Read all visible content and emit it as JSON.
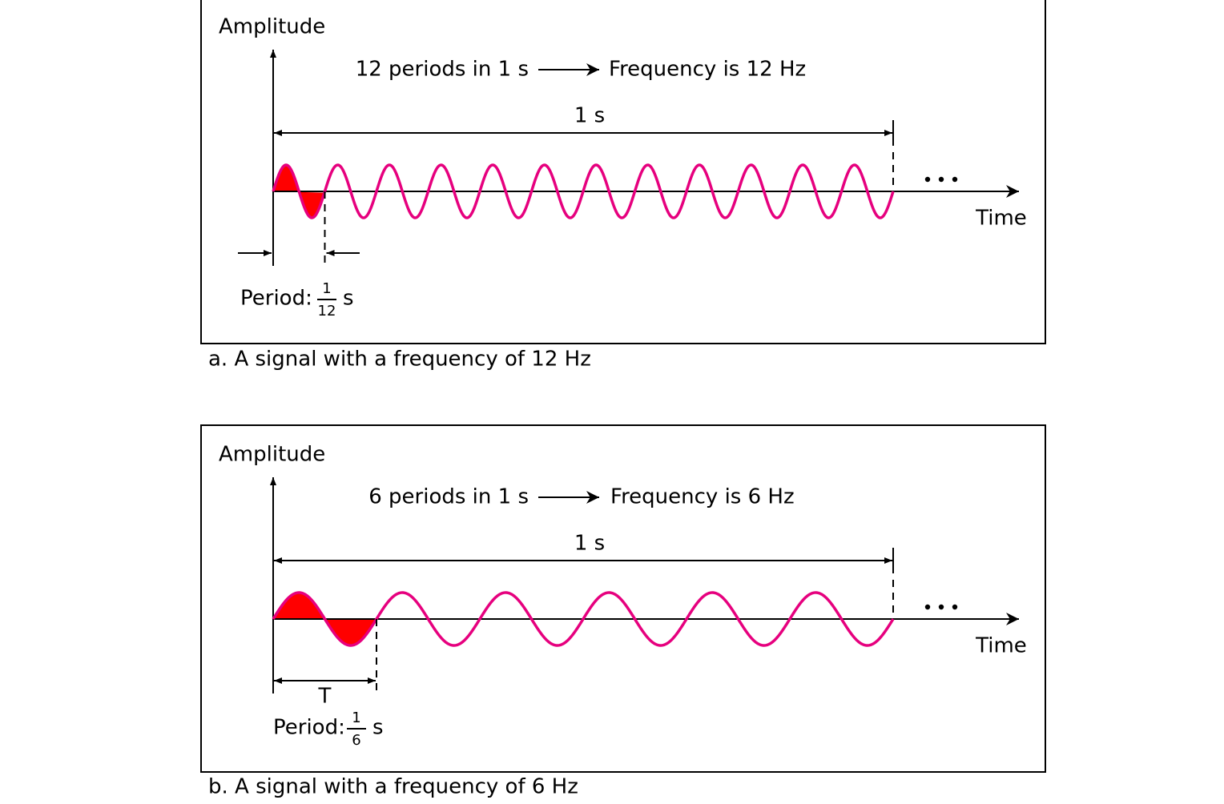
{
  "panels": [
    {
      "amplitude_label": "Amplitude",
      "rate_text": "12 periods in 1 s",
      "frequency_text": "Frequency is 12 Hz",
      "duration": "1 s",
      "time_label": "Time",
      "period_label": "Period:",
      "period_numerator": "1",
      "period_denominator": "12",
      "period_unit": "s",
      "caption": "a. A signal with a frequency of 12 Hz"
    },
    {
      "amplitude_label": "Amplitude",
      "rate_text": "6 periods in 1 s",
      "frequency_text": "Frequency is 6 Hz",
      "duration": "1 s",
      "time_label": "Time",
      "period_symbol": "T",
      "period_label": "Period:",
      "period_numerator": "1",
      "period_denominator": "6",
      "period_unit": "s",
      "caption": "b. A signal with a frequency of 6 Hz"
    }
  ]
}
